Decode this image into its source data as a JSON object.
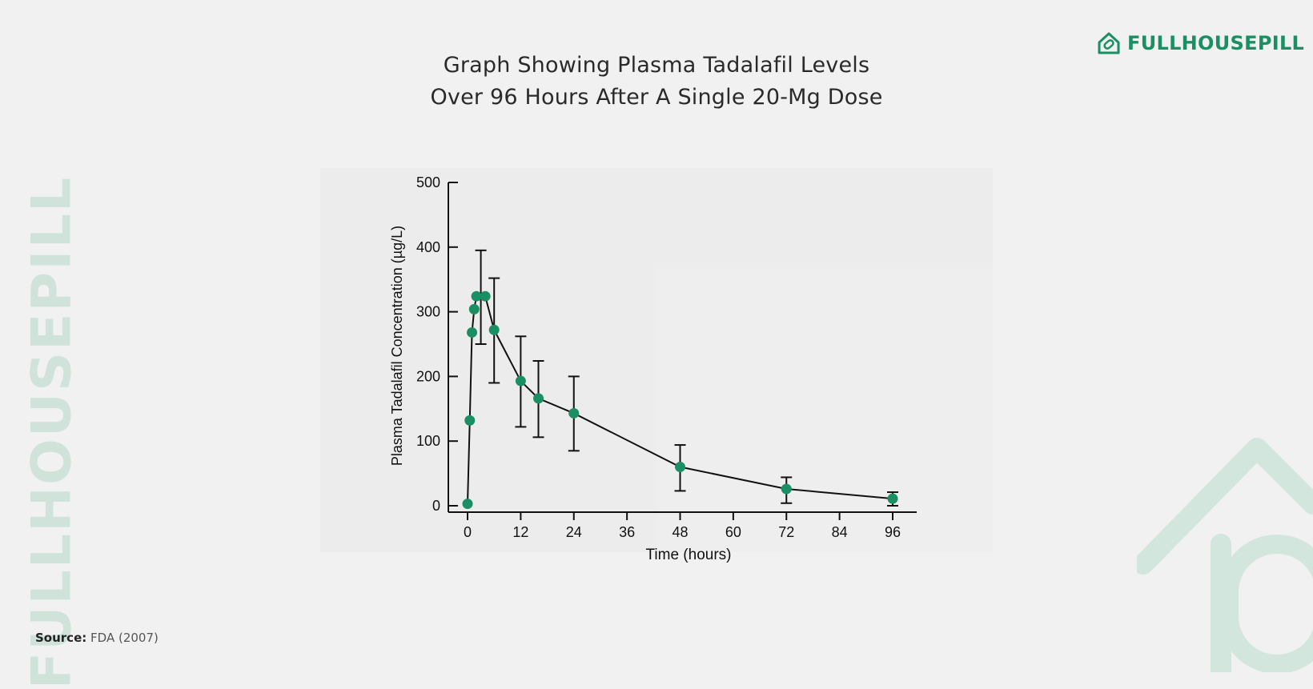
{
  "header": {
    "title_line1": "Graph Showing Plasma Tadalafil Levels",
    "title_line2": "Over 96 Hours After A Single 20-Mg Dose"
  },
  "brand": {
    "name": "FULLHOUSEPILL",
    "watermark": "FULLHOUSEPILL",
    "color": "#1a8f63",
    "watermark_color": "#cfe3da",
    "icon": "house-pill-icon"
  },
  "source": {
    "label": "Source:",
    "text": "FDA (2007)"
  },
  "chart_data": {
    "type": "line",
    "xlabel": "Time (hours)",
    "ylabel": "Plasma Tadalafil Concentration (µg/L)",
    "xlim": [
      0,
      96
    ],
    "ylim": [
      0,
      500
    ],
    "x_ticks": [
      0,
      12,
      24,
      36,
      48,
      60,
      72,
      84,
      96
    ],
    "y_ticks": [
      0,
      100,
      200,
      300,
      400,
      500
    ],
    "grid": false,
    "marker_color": "#1a8f63",
    "line_color": "#111111",
    "series": [
      {
        "x": [
          0,
          0.5,
          1,
          1.5,
          2,
          4,
          6,
          12,
          16,
          24,
          48,
          72,
          96
        ],
        "y": [
          3,
          132,
          268,
          304,
          324,
          324,
          272,
          193,
          166,
          143,
          60,
          26,
          11
        ],
        "error_low": [
          null,
          null,
          null,
          null,
          null,
          250,
          190,
          122,
          106,
          85,
          23,
          4,
          0
        ],
        "error_high": [
          null,
          null,
          null,
          null,
          null,
          395,
          352,
          262,
          224,
          200,
          94,
          44,
          21
        ],
        "error_x": [
          null,
          null,
          null,
          null,
          null,
          3,
          6,
          12,
          16,
          24,
          48,
          72,
          96
        ]
      }
    ]
  }
}
